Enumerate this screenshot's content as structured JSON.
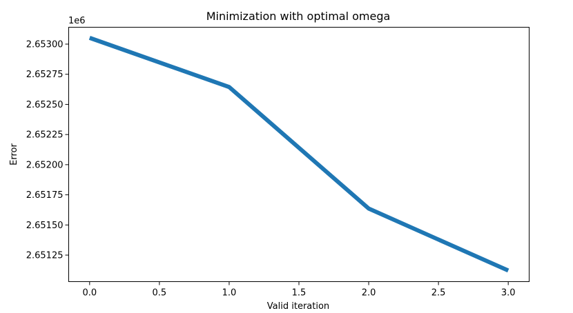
{
  "chart_data": {
    "type": "line",
    "title": "Minimization with optimal omega",
    "xlabel": "Valid iteration",
    "ylabel": "Error",
    "offset_label": "1e6",
    "x": [
      0,
      1,
      2,
      3
    ],
    "y": [
      2653052,
      2652644,
      2651636,
      2651122
    ],
    "xlim": [
      -0.15,
      3.15
    ],
    "ylim": [
      2651030,
      2653140
    ],
    "xticks": [
      0.0,
      0.5,
      1.0,
      1.5,
      2.0,
      2.5,
      3.0
    ],
    "xtick_labels": [
      "0.0",
      "0.5",
      "1.0",
      "1.5",
      "2.0",
      "2.5",
      "3.0"
    ],
    "yticks": [
      2651250,
      2651500,
      2651750,
      2652000,
      2652250,
      2652500,
      2652750,
      2653000
    ],
    "ytick_labels": [
      "2.65125",
      "2.65150",
      "2.65175",
      "2.65200",
      "2.65225",
      "2.65250",
      "2.65275",
      "2.65300"
    ],
    "line_color": "#1f77b4",
    "grid": false,
    "legend": "none"
  }
}
